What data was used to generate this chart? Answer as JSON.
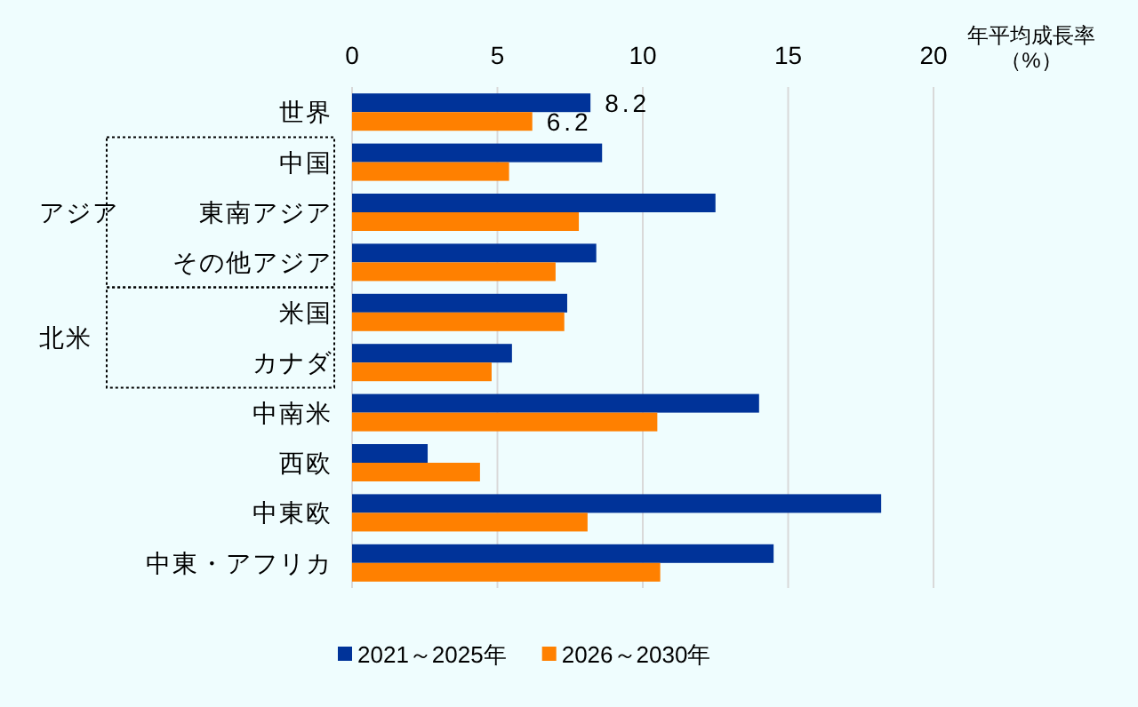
{
  "chart_data": {
    "type": "bar",
    "orientation": "horizontal",
    "xlabel": "年平均成長率（%）",
    "categories": [
      "世界",
      "中国",
      "東南アジア",
      "その他アジア",
      "米国",
      "カナダ",
      "中南米",
      "西欧",
      "中東欧",
      "中東・アフリカ"
    ],
    "series": [
      {
        "name": "2021～2025年",
        "color": "#003399",
        "values": [
          8.2,
          8.6,
          12.5,
          8.4,
          7.4,
          5.5,
          14.0,
          2.6,
          18.2,
          14.5
        ],
        "value_labels": [
          "8.2",
          null,
          null,
          null,
          null,
          null,
          null,
          null,
          null,
          null
        ]
      },
      {
        "name": "2026～2030年",
        "color": "#ff8000",
        "values": [
          6.2,
          5.4,
          7.8,
          7.0,
          7.3,
          4.8,
          10.5,
          4.4,
          8.1,
          10.6
        ],
        "value_labels": [
          "6.2",
          null,
          null,
          null,
          null,
          null,
          null,
          null,
          null,
          null
        ]
      }
    ],
    "xlim": [
      0,
      20
    ],
    "xticks": [
      0,
      5,
      10,
      15,
      20
    ],
    "grid": "x",
    "legend": "bottom",
    "annotations": [
      "アジア",
      "北米"
    ]
  }
}
